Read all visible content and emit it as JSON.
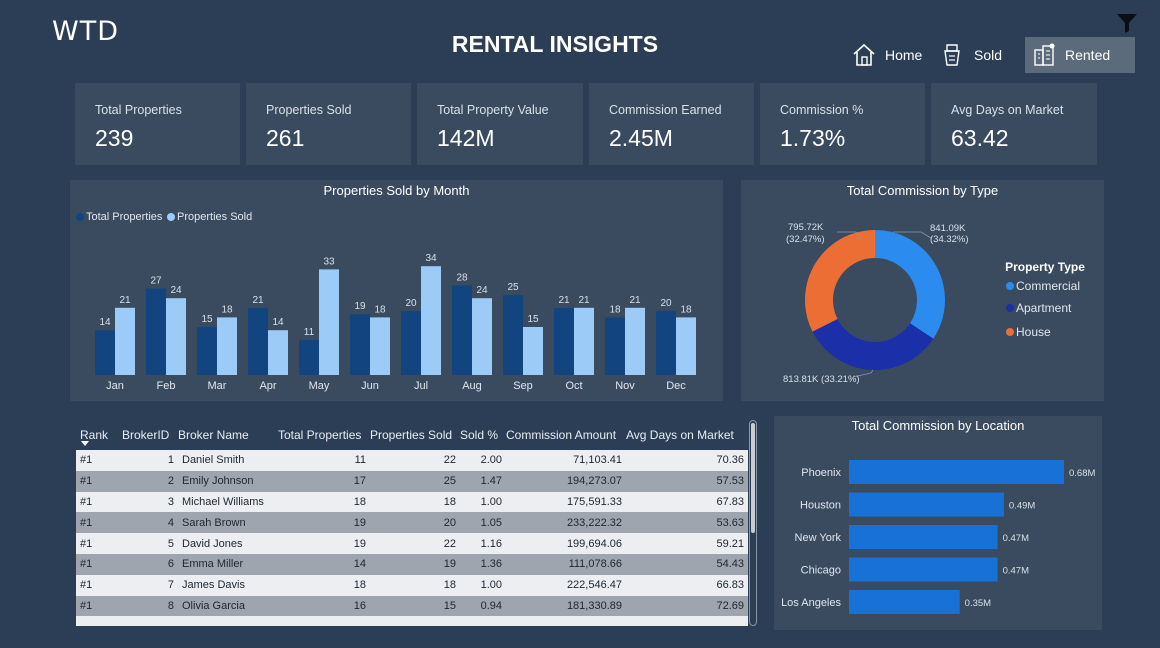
{
  "header": {
    "logo": "WTD",
    "title": "RENTAL INSIGHTS",
    "nav": [
      {
        "label": "Home",
        "icon": "home-icon"
      },
      {
        "label": "Sold",
        "icon": "sold-sign-icon"
      },
      {
        "label": "Rented",
        "icon": "buildings-icon"
      }
    ],
    "active_nav": "Rented"
  },
  "kpis": [
    {
      "label": "Total Properties",
      "value": "239"
    },
    {
      "label": "Properties Sold",
      "value": "261"
    },
    {
      "label": "Total Property Value",
      "value": "142M"
    },
    {
      "label": "Commission Earned",
      "value": "2.45M"
    },
    {
      "label": "Commission %",
      "value": "1.73%"
    },
    {
      "label": "Avg Days on Market",
      "value": "63.42"
    }
  ],
  "colors": {
    "dark_bar": "#12457f",
    "light_bar": "#9dcbf8",
    "commercial": "#2b8bef",
    "apartment": "#1a2fa8",
    "house": "#ec6e35",
    "location_bar": "#1771d6"
  },
  "chart_data": [
    {
      "type": "bar",
      "title": "Properties Sold by Month",
      "categories": [
        "Jan",
        "Feb",
        "Mar",
        "Apr",
        "May",
        "Jun",
        "Jul",
        "Aug",
        "Sep",
        "Oct",
        "Nov",
        "Dec"
      ],
      "series": [
        {
          "name": "Total Properties",
          "values": [
            14,
            27,
            15,
            21,
            11,
            19,
            20,
            28,
            25,
            21,
            18,
            20
          ]
        },
        {
          "name": "Properties Sold",
          "values": [
            21,
            24,
            18,
            14,
            33,
            18,
            34,
            24,
            15,
            21,
            21,
            18
          ]
        }
      ],
      "legend": "top-left",
      "ylim": [
        0,
        35
      ]
    },
    {
      "type": "pie",
      "title": "Total Commission by Type",
      "legend_title": "Property Type",
      "slices": [
        {
          "name": "Commercial",
          "value": 841.09,
          "label": "841.09K",
          "pct": "(34.32%)"
        },
        {
          "name": "Apartment",
          "value": 813.81,
          "label": "813.81K (33.21%)",
          "pct": ""
        },
        {
          "name": "House",
          "value": 795.72,
          "label": "795.72K",
          "pct": "(32.47%)"
        }
      ]
    },
    {
      "type": "bar",
      "orientation": "horizontal",
      "title": "Total Commission by Location",
      "categories": [
        "Phoenix",
        "Houston",
        "New York",
        "Chicago",
        "Los Angeles"
      ],
      "values": [
        0.68,
        0.49,
        0.47,
        0.47,
        0.35
      ],
      "value_labels": [
        "0.68M",
        "0.49M",
        "0.47M",
        "0.47M",
        "0.35M"
      ],
      "xlim": [
        0,
        0.7
      ]
    }
  ],
  "table": {
    "columns": [
      "Rank",
      "BrokerID",
      "Broker Name",
      "Total Properties",
      "Properties Sold",
      "Sold %",
      "Commission Amount",
      "Avg Days on Market"
    ],
    "rows": [
      [
        "#1",
        "1",
        "Daniel Smith",
        "11",
        "22",
        "2.00",
        "71,103.41",
        "70.36"
      ],
      [
        "#1",
        "2",
        "Emily Johnson",
        "17",
        "25",
        "1.47",
        "194,273.07",
        "57.53"
      ],
      [
        "#1",
        "3",
        "Michael Williams",
        "18",
        "18",
        "1.00",
        "175,591.33",
        "67.83"
      ],
      [
        "#1",
        "4",
        "Sarah Brown",
        "19",
        "20",
        "1.05",
        "233,222.32",
        "53.63"
      ],
      [
        "#1",
        "5",
        "David Jones",
        "19",
        "22",
        "1.16",
        "199,694.06",
        "59.21"
      ],
      [
        "#1",
        "6",
        "Emma Miller",
        "14",
        "19",
        "1.36",
        "111,078.66",
        "54.43"
      ],
      [
        "#1",
        "7",
        "James Davis",
        "18",
        "18",
        "1.00",
        "222,546.47",
        "66.83"
      ],
      [
        "#1",
        "8",
        "Olivia Garcia",
        "16",
        "15",
        "0.94",
        "181,330.89",
        "72.69"
      ]
    ]
  }
}
